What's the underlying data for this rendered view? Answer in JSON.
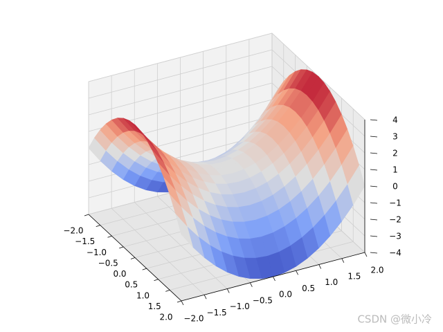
{
  "chart_data": {
    "type": "surface3d",
    "colormap": "coolwarm",
    "x": [
      -2,
      -1.75,
      -1.5,
      -1.25,
      -1,
      -0.75,
      -0.5,
      -0.25,
      0,
      0.25,
      0.5,
      0.75,
      1,
      1.25,
      1.5,
      1.75,
      2
    ],
    "y": [
      -2,
      -1.75,
      -1.5,
      -1.25,
      -1,
      -0.75,
      -0.5,
      -0.25,
      0,
      0.25,
      0.5,
      0.75,
      1,
      1.25,
      1.5,
      1.75,
      2
    ],
    "z": [
      [
        0,
        0.9375,
        1.75,
        2.4375,
        3,
        3.4375,
        3.75,
        3.9375,
        4,
        3.9375,
        3.75,
        3.4375,
        3,
        2.4375,
        1.75,
        0.9375,
        0
      ],
      [
        -0.9375,
        0,
        0.8125,
        1.5,
        2.0625,
        2.5,
        2.8125,
        3,
        3.0625,
        3,
        2.8125,
        2.5,
        2.0625,
        1.5,
        0.8125,
        0,
        -0.9375
      ],
      [
        -1.75,
        -0.8125,
        0,
        0.6875,
        1.25,
        1.6875,
        2,
        2.1875,
        2.25,
        2.1875,
        2,
        1.6875,
        1.25,
        0.6875,
        0,
        -0.8125,
        -1.75
      ],
      [
        -2.4375,
        -1.5,
        -0.6875,
        0,
        0.5625,
        1,
        1.3125,
        1.5,
        1.5625,
        1.5,
        1.3125,
        1,
        0.5625,
        0,
        -0.6875,
        -1.5,
        -2.4375
      ],
      [
        -3,
        -2.0625,
        -1.25,
        -0.5625,
        0,
        0.4375,
        0.75,
        0.9375,
        1,
        0.9375,
        0.75,
        0.4375,
        0,
        -0.5625,
        -1.25,
        -2.0625,
        -3
      ],
      [
        -3.4375,
        -2.5,
        -1.6875,
        -1,
        -0.4375,
        0,
        0.3125,
        0.5,
        0.5625,
        0.5,
        0.3125,
        0,
        -0.4375,
        -1,
        -1.6875,
        -2.5,
        -3.4375
      ],
      [
        -3.75,
        -2.8125,
        -2,
        -1.3125,
        -0.75,
        -0.3125,
        0,
        0.1875,
        0.25,
        0.1875,
        0,
        -0.3125,
        -0.75,
        -1.3125,
        -2,
        -2.8125,
        -3.75
      ],
      [
        -3.9375,
        -3,
        -2.1875,
        -1.5,
        -0.9375,
        -0.5,
        -0.1875,
        0,
        0.0625,
        0,
        -0.1875,
        -0.5,
        -0.9375,
        -1.5,
        -2.1875,
        -3,
        -3.9375
      ],
      [
        -4,
        -3.0625,
        -2.25,
        -1.5625,
        -1,
        -0.5625,
        -0.25,
        -0.0625,
        0,
        -0.0625,
        -0.25,
        -0.5625,
        -1,
        -1.5625,
        -2.25,
        -3.0625,
        -4
      ],
      [
        -3.9375,
        -3,
        -2.1875,
        -1.5,
        -0.9375,
        -0.5,
        -0.1875,
        0,
        0.0625,
        0,
        -0.1875,
        -0.5,
        -0.9375,
        -1.5,
        -2.1875,
        -3,
        -3.9375
      ],
      [
        -3.75,
        -2.8125,
        -2,
        -1.3125,
        -0.75,
        -0.3125,
        0,
        0.1875,
        0.25,
        0.1875,
        0,
        -0.3125,
        -0.75,
        -1.3125,
        -2,
        -2.8125,
        -3.75
      ],
      [
        -3.4375,
        -2.5,
        -1.6875,
        -1,
        -0.4375,
        0,
        0.3125,
        0.5,
        0.5625,
        0.5,
        0.3125,
        0,
        -0.4375,
        -1,
        -1.6875,
        -2.5,
        -3.4375
      ],
      [
        -3,
        -2.0625,
        -1.25,
        -0.5625,
        0,
        0.4375,
        0.75,
        0.9375,
        1,
        0.9375,
        0.75,
        0.4375,
        0,
        -0.5625,
        -1.25,
        -2.0625,
        -3
      ],
      [
        -2.4375,
        -1.5,
        -0.6875,
        0,
        0.5625,
        1,
        1.3125,
        1.5,
        1.5625,
        1.5,
        1.3125,
        1,
        0.5625,
        0,
        -0.6875,
        -1.5,
        -2.4375
      ],
      [
        -1.75,
        -0.8125,
        0,
        0.6875,
        1.25,
        1.6875,
        2,
        2.1875,
        2.25,
        2.1875,
        2,
        1.6875,
        1.25,
        0.6875,
        0,
        -0.8125,
        -1.75
      ],
      [
        -0.9375,
        0,
        0.8125,
        1.5,
        2.0625,
        2.5,
        2.8125,
        3,
        3.0625,
        3,
        2.8125,
        2.5,
        2.0625,
        1.5,
        0.8125,
        0,
        -0.9375
      ],
      [
        0,
        0.9375,
        1.75,
        2.4375,
        3,
        3.4375,
        3.75,
        3.9375,
        4,
        3.9375,
        3.75,
        3.4375,
        3,
        2.4375,
        1.75,
        0.9375,
        0
      ]
    ],
    "xlim": [
      -2,
      2
    ],
    "ylim": [
      -2,
      2
    ],
    "zlim": [
      -4,
      4
    ],
    "xticks": [
      {
        "value": -2,
        "label": "−2.0"
      },
      {
        "value": -1.5,
        "label": "−1.5"
      },
      {
        "value": -1,
        "label": "−1.0"
      },
      {
        "value": -0.5,
        "label": "−0.5"
      },
      {
        "value": 0,
        "label": "0.0"
      },
      0.5,
      {
        "value": 1,
        "label": "1.0"
      },
      1.5,
      {
        "value": 2,
        "label": "2.0"
      }
    ],
    "yticks": [
      {
        "value": -2,
        "label": "−2.0"
      },
      {
        "value": -1.5,
        "label": "−1.5"
      },
      {
        "value": -1,
        "label": "−1.0"
      },
      {
        "value": -0.5,
        "label": "−0.5"
      },
      {
        "value": 0,
        "label": "0.0"
      },
      0.5,
      {
        "value": 1,
        "label": "1.0"
      },
      1.5,
      {
        "value": 2,
        "label": "2.0"
      }
    ],
    "zticks": [
      {
        "value": -4,
        "label": "−4"
      },
      {
        "value": -3,
        "label": "−3"
      },
      {
        "value": -2,
        "label": "−2"
      },
      {
        "value": -1,
        "label": "−1"
      },
      0,
      1,
      2,
      3,
      4
    ],
    "grid": true
  },
  "watermark": "CSDN @微小冷"
}
